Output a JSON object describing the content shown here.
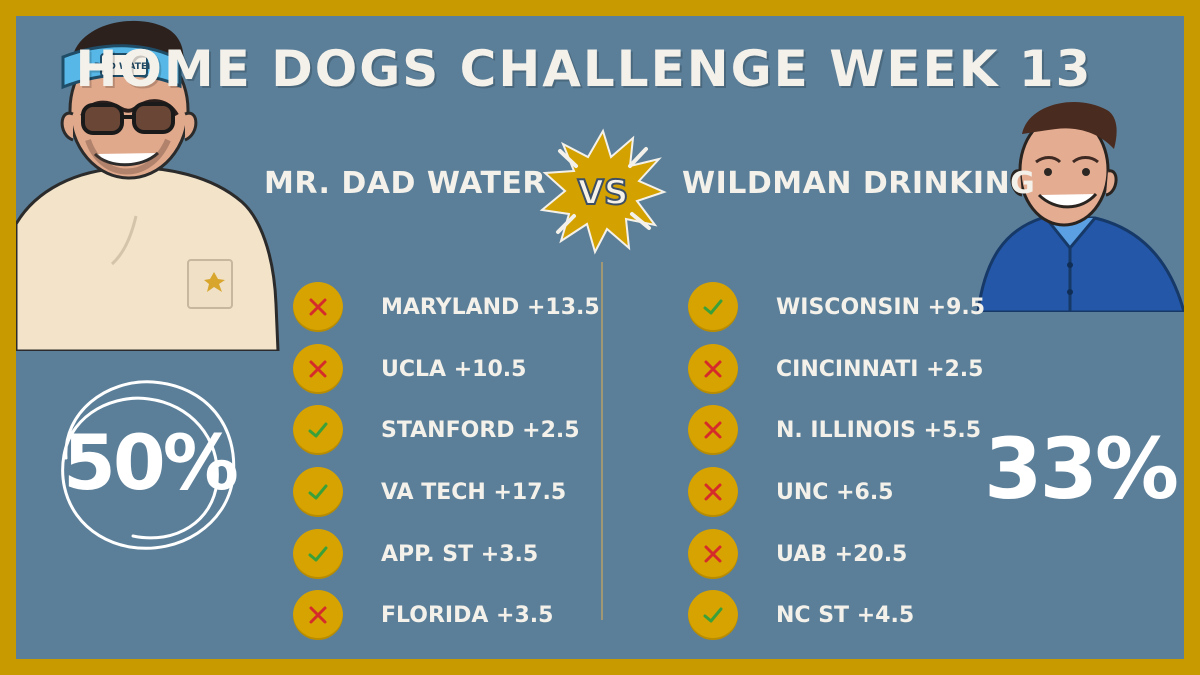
{
  "title": "HOME DOGS CHALLENGE WEEK 13",
  "vs_label": "VS",
  "left": {
    "name": "MR. DAD WATER",
    "headband_text": "DAD WATER",
    "percent": "50%",
    "picks": [
      {
        "team": "MARYLAND +13.5",
        "result": "loss",
        "icon": "x-icon"
      },
      {
        "team": "UCLA +10.5",
        "result": "loss",
        "icon": "x-icon"
      },
      {
        "team": "STANFORD +2.5",
        "result": "win",
        "icon": "check-icon"
      },
      {
        "team": "VA TECH +17.5",
        "result": "win",
        "icon": "check-icon"
      },
      {
        "team": "APP. ST +3.5",
        "result": "win",
        "icon": "check-icon"
      },
      {
        "team": "FLORIDA +3.5",
        "result": "loss",
        "icon": "x-icon"
      }
    ]
  },
  "right": {
    "name": "WILDMAN DRINKING",
    "percent": "33%",
    "picks": [
      {
        "team": "WISCONSIN +9.5",
        "result": "win",
        "icon": "check-icon"
      },
      {
        "team": "CINCINNATI +2.5",
        "result": "loss",
        "icon": "x-icon"
      },
      {
        "team": "N. ILLINOIS +5.5",
        "result": "loss",
        "icon": "x-icon"
      },
      {
        "team": "UNC +6.5",
        "result": "loss",
        "icon": "x-icon"
      },
      {
        "team": "UAB +20.5",
        "result": "loss",
        "icon": "x-icon"
      },
      {
        "team": "NC ST +4.5",
        "result": "win",
        "icon": "check-icon"
      }
    ]
  },
  "colors": {
    "border": "#c99a00",
    "background": "#5b7f99",
    "text": "#f4f1ea",
    "badge": "#d7a300",
    "win": "#3aa13a",
    "loss": "#d52b2b"
  }
}
